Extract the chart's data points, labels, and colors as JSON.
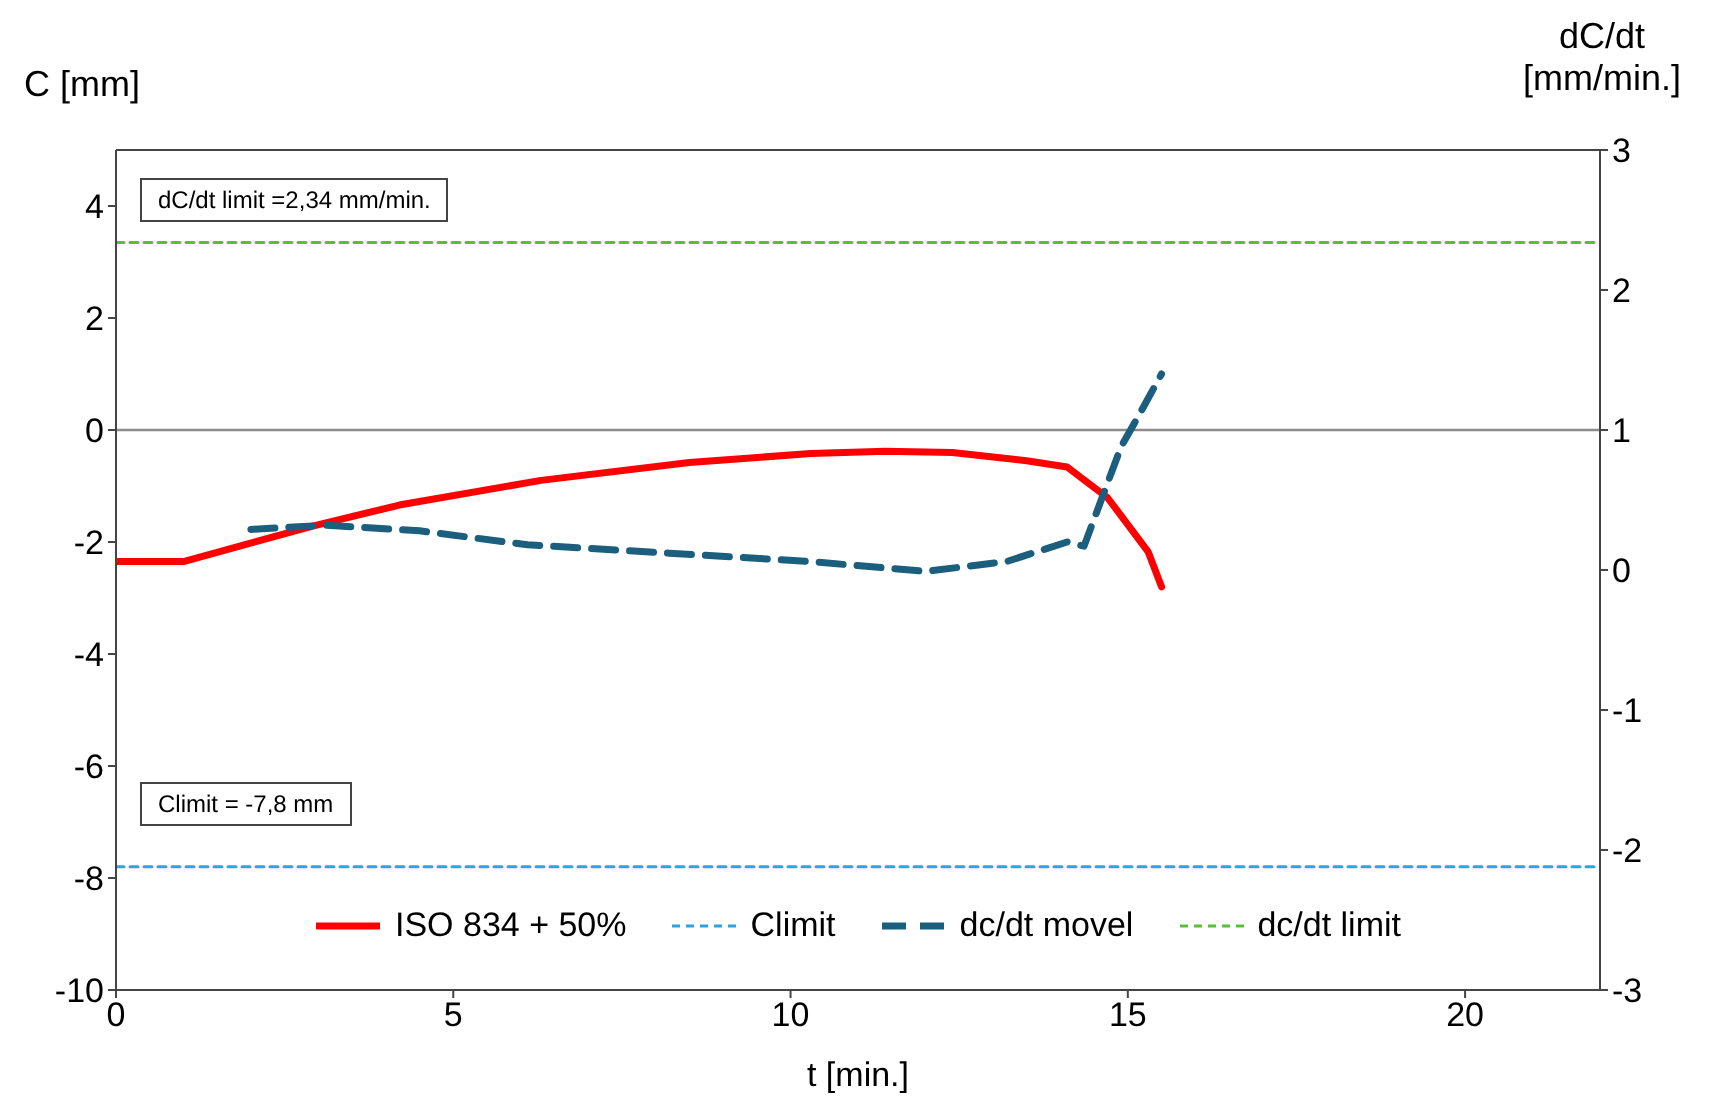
{
  "chart_data": {
    "type": "line",
    "xlabel": "t [min.]",
    "ylabel": "C [mm]",
    "y2label": "dC/dt [mm/min.]",
    "xlim": [
      0,
      22
    ],
    "xticks": [
      0,
      5,
      10,
      15,
      20
    ],
    "ylim": [
      -10,
      5
    ],
    "yticks": [
      -10,
      -8,
      -6,
      -4,
      -2,
      0,
      2,
      4
    ],
    "y2lim": [
      -3,
      3
    ],
    "y2ticks": [
      -3,
      -2,
      -1,
      0,
      1,
      2,
      3
    ],
    "series": [
      {
        "name": "ISO 834 + 50%",
        "color": "#ff0000",
        "line_style": "solid",
        "x": [
          0,
          1.0,
          2.9,
          4.2,
          6.3,
          8.5,
          10.3,
          11.4,
          12.4,
          13.5,
          14.1,
          14.7,
          15.3,
          15.5
        ],
        "values": [
          -2.35,
          -2.35,
          -1.72,
          -1.34,
          -0.9,
          -0.58,
          -0.42,
          -0.38,
          -0.4,
          -0.55,
          -0.66,
          -1.21,
          -2.17,
          -2.8
        ]
      },
      {
        "name": "Climit",
        "color": "#2ea3dc",
        "line_style": "dashed",
        "x": [
          0,
          22
        ],
        "values": [
          -7.8,
          -7.8
        ]
      },
      {
        "name": "dc/dt movel",
        "color": "#1b5e7e",
        "line_style": "dashed",
        "axis": "y2",
        "x": [
          2.0,
          3.1,
          4.5,
          6.1,
          8.2,
          10.3,
          12.0,
          13.2,
          14.1,
          14.35,
          14.9,
          15.25,
          15.5
        ],
        "values": [
          0.29,
          0.32,
          0.28,
          0.18,
          0.12,
          0.06,
          -0.01,
          0.06,
          0.2,
          0.17,
          0.88,
          1.18,
          1.4
        ]
      },
      {
        "name": "dc/dt limit",
        "color": "#5bbd3c",
        "line_style": "dashed",
        "axis": "y2",
        "x": [
          0,
          22
        ],
        "values": [
          2.34,
          2.34
        ]
      }
    ],
    "ref_lines": [
      {
        "axis": "y",
        "value": 0,
        "color": "#8c8c8c"
      }
    ],
    "annotations": [
      "dC/dt limit =2,34 mm/min.",
      "Climit = -7,8 mm"
    ],
    "legend": "bottom",
    "grid": false,
    "marker": "none"
  }
}
